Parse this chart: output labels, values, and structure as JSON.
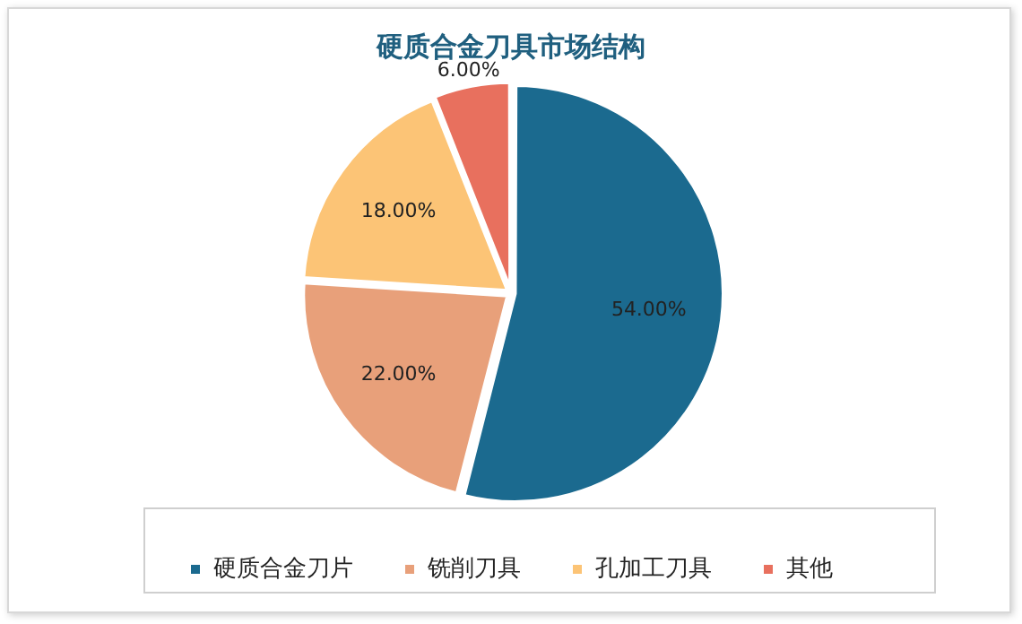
{
  "chart_data": {
    "type": "pie",
    "title": "硬质合金刀具市场结构",
    "categories": [
      "硬质合金刀片",
      "铣削刀具",
      "孔加工刀具",
      "其他"
    ],
    "values": [
      54,
      22,
      18,
      6
    ],
    "colors": [
      "#1b6a8f",
      "#e8a07a",
      "#fcc476",
      "#e8705e"
    ],
    "value_labels": [
      "54.00%",
      "22.00%",
      "18.00%",
      "6.00%"
    ],
    "legend": "bottom"
  }
}
